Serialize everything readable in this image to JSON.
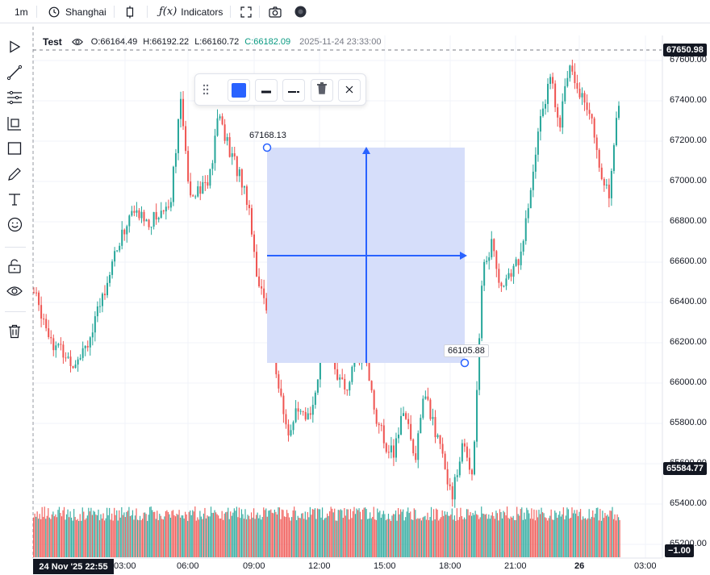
{
  "toolbar": {
    "interval": "1m",
    "timezone": "Shanghai",
    "indicators_label": "Indicators",
    "function_glyph": "ƒ(x)"
  },
  "left_tools": [
    "play-icon",
    "trendline-icon",
    "fib-icon",
    "pattern-icon",
    "rectangle-icon",
    "pencil-icon",
    "text-icon",
    "emoji-icon",
    "unlock-icon",
    "eye-icon",
    "trash-icon"
  ],
  "legend": {
    "symbol": "Test",
    "open": "O:66164.49",
    "high": "H:66192.22",
    "low": "L:66160.72",
    "close": "C:66182.09",
    "datetime": "2025-11-24 23:33:00"
  },
  "drawing": {
    "top_price": "67168.13",
    "bottom_price": "66105.88",
    "fill_color": "#d6defa",
    "line_color": "#2962ff"
  },
  "price_axis": {
    "labels": [
      "67600.00",
      "67400.00",
      "67200.00",
      "67000.00",
      "66800.00",
      "66600.00",
      "66400.00",
      "66200.00",
      "66000.00",
      "65800.00",
      "65600.00",
      "65400.00",
      "65200.00"
    ],
    "current_price": "67650.98",
    "crosshair_price": "65584.77",
    "volume_value": "1.00"
  },
  "time_axis": {
    "labels": [
      "03:00",
      "06:00",
      "09:00",
      "12:00",
      "15:00",
      "18:00",
      "21:00",
      "26",
      "03:00"
    ],
    "crosshair_date": "24 Nov '25   22:55"
  },
  "colors": {
    "up": "#26a69a",
    "down": "#ef5350",
    "accent": "#2962ff"
  },
  "chart_data": {
    "type": "candlestick",
    "symbol": "Test",
    "interval": "1m",
    "y_range": [
      65200,
      67650
    ],
    "x_ticks": [
      "03:00",
      "06:00",
      "09:00",
      "12:00",
      "15:00",
      "18:00",
      "21:00",
      "26",
      "03:00"
    ],
    "price_path": [
      [
        0,
        66450
      ],
      [
        2,
        66200
      ],
      [
        4,
        66100
      ],
      [
        6,
        66250
      ],
      [
        8,
        66600
      ],
      [
        10,
        66850
      ],
      [
        12,
        66800
      ],
      [
        14,
        66900
      ],
      [
        15,
        67400
      ],
      [
        16,
        66950
      ],
      [
        18,
        67000
      ],
      [
        19,
        67350
      ],
      [
        20,
        67150
      ],
      [
        21,
        67050
      ],
      [
        22,
        66900
      ],
      [
        23,
        66500
      ],
      [
        24,
        66350
      ],
      [
        25,
        66000
      ],
      [
        26,
        65750
      ],
      [
        27,
        65850
      ],
      [
        28,
        65800
      ],
      [
        29,
        66000
      ],
      [
        30,
        66250
      ],
      [
        31,
        66050
      ],
      [
        32,
        65950
      ],
      [
        33,
        66100
      ],
      [
        34,
        66150
      ],
      [
        35,
        65850
      ],
      [
        36,
        65700
      ],
      [
        37,
        65650
      ],
      [
        38,
        65900
      ],
      [
        39,
        65600
      ],
      [
        40,
        65950
      ],
      [
        41,
        65800
      ],
      [
        42,
        65600
      ],
      [
        43,
        65450
      ],
      [
        44,
        65700
      ],
      [
        45,
        65550
      ],
      [
        46,
        66550
      ],
      [
        47,
        66700
      ],
      [
        48,
        66450
      ],
      [
        49,
        66550
      ],
      [
        50,
        66650
      ],
      [
        51,
        66950
      ],
      [
        52,
        67350
      ],
      [
        53,
        67500
      ],
      [
        54,
        67300
      ],
      [
        55,
        67600
      ],
      [
        56,
        67450
      ],
      [
        57,
        67350
      ],
      [
        58,
        67050
      ],
      [
        59,
        66950
      ],
      [
        60,
        67400
      ]
    ],
    "volume": "uniform low bars across the range"
  }
}
